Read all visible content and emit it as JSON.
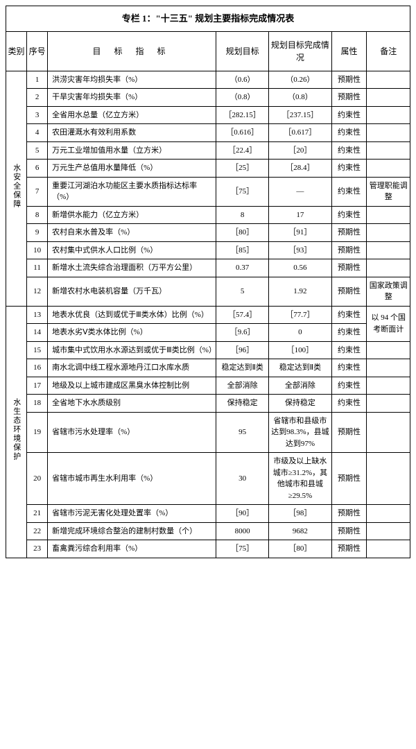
{
  "title": "专栏 1：\"十三五\" 规划主要指标完成情况表",
  "headers": {
    "category": "类别",
    "num": "序号",
    "indicator": "目 标 指 标",
    "plan": "规划目标",
    "completion": "规划目标完成情况",
    "attr": "属性",
    "note": "备注"
  },
  "cat1": "水安全保障",
  "cat2": "水生态环境保护",
  "rows": [
    {
      "n": "1",
      "ind": "洪涝灾害年均损失率（%）",
      "plan": "（0.6）",
      "comp": "（0.26）",
      "attr": "预期性",
      "note": ""
    },
    {
      "n": "2",
      "ind": "干旱灾害年均损失率（%）",
      "plan": "（0.8）",
      "comp": "（0.8）",
      "attr": "预期性",
      "note": ""
    },
    {
      "n": "3",
      "ind": "全省用水总量（亿立方米）",
      "plan": "［282.15］",
      "comp": "［237.15］",
      "attr": "约束性",
      "note": ""
    },
    {
      "n": "4",
      "ind": "农田灌溉水有效利用系数",
      "plan": "［0.616］",
      "comp": "［0.617］",
      "attr": "约束性",
      "note": ""
    },
    {
      "n": "5",
      "ind": "万元工业增加值用水量（立方米）",
      "plan": "［22.4］",
      "comp": "［20］",
      "attr": "约束性",
      "note": ""
    },
    {
      "n": "6",
      "ind": "万元生产总值用水量降低（%）",
      "plan": "［25］",
      "comp": "［28.4］",
      "attr": "约束性",
      "note": ""
    },
    {
      "n": "7",
      "ind": "重要江河湖泊水功能区主要水质指标达标率（%）",
      "plan": "［75］",
      "comp": "—",
      "attr": "约束性",
      "note": "管理职能调整"
    },
    {
      "n": "8",
      "ind": "新增供水能力（亿立方米）",
      "plan": "8",
      "comp": "17",
      "attr": "约束性",
      "note": ""
    },
    {
      "n": "9",
      "ind": "农村自来水普及率（%）",
      "plan": "［80］",
      "comp": "［91］",
      "attr": "预期性",
      "note": ""
    },
    {
      "n": "10",
      "ind": "农村集中式供水人口比例（%）",
      "plan": "［85］",
      "comp": "［93］",
      "attr": "预期性",
      "note": ""
    },
    {
      "n": "11",
      "ind": "新增水土流失综合治理面积（万平方公里）",
      "plan": "0.37",
      "comp": "0.56",
      "attr": "预期性",
      "note": ""
    },
    {
      "n": "12",
      "ind": "新增农村水电装机容量（万千瓦）",
      "plan": "5",
      "comp": "1.92",
      "attr": "预期性",
      "note": "国家政策调整"
    },
    {
      "n": "13",
      "ind": "地表水优良（达到或优于Ⅲ类水体）比例（%）",
      "plan": "［57.4］",
      "comp": "［77.7］",
      "attr": "约束性",
      "note": "以 94 个国考断面计"
    },
    {
      "n": "14",
      "ind": "地表水劣Ⅴ类水体比例（%）",
      "plan": "［9.6］",
      "comp": "0",
      "attr": "约束性",
      "note": ""
    },
    {
      "n": "15",
      "ind": "城市集中式饮用水水源达到或优于Ⅲ类比例（%）",
      "plan": "［96］",
      "comp": "［100］",
      "attr": "约束性",
      "note": ""
    },
    {
      "n": "16",
      "ind": "南水北调中线工程水源地丹江口水库水质",
      "plan": "稳定达到Ⅱ类",
      "comp": "稳定达到Ⅱ类",
      "attr": "约束性",
      "note": ""
    },
    {
      "n": "17",
      "ind": "地级及以上城市建成区黑臭水体控制比例",
      "plan": "全部消除",
      "comp": "全部消除",
      "attr": "约束性",
      "note": ""
    },
    {
      "n": "18",
      "ind": "全省地下水水质级别",
      "plan": "保持稳定",
      "comp": "保持稳定",
      "attr": "约束性",
      "note": ""
    },
    {
      "n": "19",
      "ind": "省辖市污水处理率（%）",
      "plan": "95",
      "comp": "省辖市和县级市达到98.3%，县城达到97%",
      "attr": "预期性",
      "note": ""
    },
    {
      "n": "20",
      "ind": "省辖市城市再生水利用率（%）",
      "plan": "30",
      "comp": "市级及以上缺水城市≥31.2%，其他城市和县城≥29.5%",
      "attr": "预期性",
      "note": ""
    },
    {
      "n": "21",
      "ind": "省辖市污泥无害化处理处置率（%）",
      "plan": "［90］",
      "comp": "［98］",
      "attr": "预期性",
      "note": ""
    },
    {
      "n": "22",
      "ind": "新增完成环境综合整治的建制村数量（个）",
      "plan": "8000",
      "comp": "9682",
      "attr": "预期性",
      "note": ""
    },
    {
      "n": "23",
      "ind": "畜禽粪污综合利用率（%）",
      "plan": "［75］",
      "comp": "［80］",
      "attr": "预期性",
      "note": ""
    }
  ]
}
